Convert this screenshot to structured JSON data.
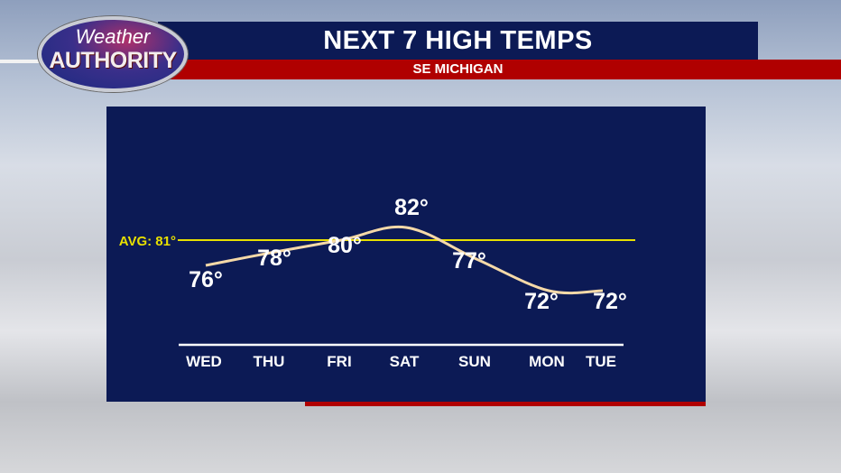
{
  "logo": {
    "line1": "Weather",
    "line2": "AUTHORITY"
  },
  "header": {
    "title": "NEXT 7 HIGH TEMPS",
    "subtitle": "SE MICHIGAN"
  },
  "colors": {
    "navy": "#0c1a55",
    "red": "#b00000",
    "avg_line": "#e8e000",
    "curve": "#f5d9a8"
  },
  "chart_data": {
    "type": "line",
    "title": "NEXT 7 HIGH TEMPS",
    "subtitle": "SE MICHIGAN",
    "categories": [
      "WED",
      "THU",
      "FRI",
      "SAT",
      "SUN",
      "MON",
      "TUE"
    ],
    "values": [
      76,
      78,
      80,
      82,
      77,
      72,
      72
    ],
    "value_labels": [
      "76°",
      "78°",
      "80°",
      "82°",
      "77°",
      "72°",
      "72°"
    ],
    "reference_line": {
      "label": "AVG: 81°",
      "value": 81
    },
    "grid": false
  }
}
